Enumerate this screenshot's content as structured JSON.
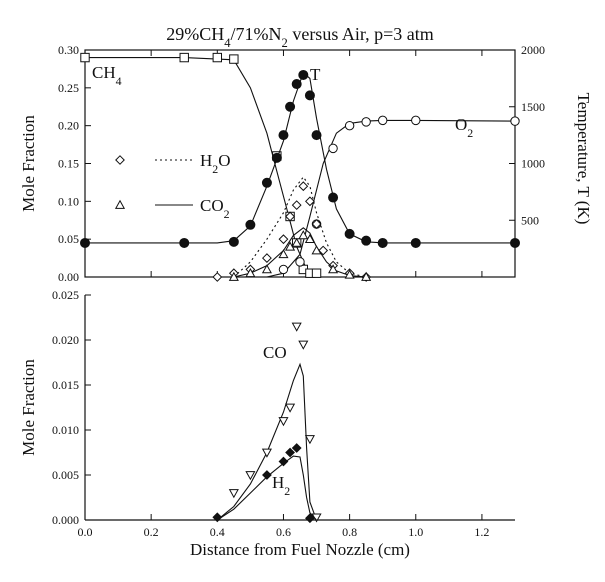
{
  "figure": {
    "title": "29%CH4/71%N2 versus Air, p=3 atm",
    "title_parts": [
      "29%CH",
      "4",
      "/71%N",
      "2",
      " versus Air, p=3 atm"
    ],
    "xlabel": "Distance from Fuel Nozzle (cm)"
  },
  "chart_data": [
    {
      "type": "line",
      "panel": "top",
      "xlim": [
        0,
        1.3
      ],
      "ylim": [
        0,
        0.3
      ],
      "ylabel": "Mole Fraction",
      "y2lim": [
        0,
        2000
      ],
      "y2label": "Temperature, T (K)",
      "x_ticks": [
        0.0,
        0.2,
        0.4,
        0.6,
        0.8,
        1.0,
        1.2
      ],
      "y_ticks": [
        "0.00",
        "0.05",
        "0.10",
        "0.15",
        "0.20",
        "0.25",
        "0.30"
      ],
      "y2_ticks": [
        "500",
        "1000",
        "1500",
        "2000"
      ],
      "legend": [
        {
          "label": "H2O",
          "label_parts": [
            "H",
            "2",
            "O"
          ],
          "marker": "diamond",
          "line": "dotted"
        },
        {
          "label": "CO2",
          "label_parts": [
            "CO",
            "2",
            ""
          ],
          "marker": "triangle",
          "line": "solid"
        }
      ],
      "series": [
        {
          "name": "CH4",
          "name_parts": [
            "CH",
            "4"
          ],
          "axis": "left",
          "marker": "square",
          "x": [
            0.0,
            0.3,
            0.4,
            0.45,
            0.58,
            0.62,
            0.64,
            0.66,
            0.68,
            0.7
          ],
          "y": [
            0.29,
            0.29,
            0.29,
            0.288,
            0.16,
            0.08,
            0.045,
            0.01,
            0.005,
            0.005
          ],
          "curve_x": [
            0.0,
            0.3,
            0.45,
            0.5,
            0.55,
            0.58,
            0.61,
            0.64,
            0.67,
            0.7
          ],
          "curve_y": [
            0.29,
            0.29,
            0.287,
            0.25,
            0.19,
            0.14,
            0.09,
            0.04,
            0.01,
            0.0
          ]
        },
        {
          "name": "T",
          "name_parts": [
            "T",
            ""
          ],
          "axis": "right",
          "marker": "filled-circle",
          "x": [
            0.0,
            0.3,
            0.45,
            0.5,
            0.55,
            0.58,
            0.6,
            0.62,
            0.64,
            0.66,
            0.68,
            0.7,
            0.75,
            0.8,
            0.85,
            0.9,
            1.0,
            1.3
          ],
          "y": [
            300,
            300,
            310,
            460,
            830,
            1050,
            1250,
            1500,
            1700,
            1780,
            1600,
            1250,
            700,
            380,
            320,
            300,
            300,
            300
          ],
          "curve_x": [
            0.0,
            0.4,
            0.45,
            0.5,
            0.55,
            0.6,
            0.63,
            0.66,
            0.68,
            0.7,
            0.73,
            0.76,
            0.8,
            0.85,
            0.9,
            1.3
          ],
          "curve_y": [
            300,
            300,
            320,
            450,
            800,
            1200,
            1550,
            1800,
            1750,
            1400,
            950,
            600,
            380,
            310,
            300,
            300
          ]
        },
        {
          "name": "O2",
          "name_parts": [
            "O",
            "2"
          ],
          "axis": "left",
          "marker": "open-circle",
          "x": [
            0.6,
            0.65,
            0.7,
            0.75,
            0.8,
            0.85,
            0.9,
            1.0,
            1.3
          ],
          "y": [
            0.01,
            0.02,
            0.07,
            0.17,
            0.2,
            0.205,
            0.207,
            0.207,
            0.206
          ],
          "curve_x": [
            0.55,
            0.6,
            0.65,
            0.68,
            0.72,
            0.76,
            0.8,
            0.85,
            0.9,
            1.0,
            1.3
          ],
          "curve_y": [
            0.0,
            0.005,
            0.03,
            0.08,
            0.15,
            0.19,
            0.203,
            0.206,
            0.207,
            0.207,
            0.206
          ]
        },
        {
          "name": "H2O",
          "axis": "left",
          "marker": "diamond",
          "x": [
            0.4,
            0.45,
            0.5,
            0.55,
            0.6,
            0.62,
            0.64,
            0.66,
            0.68,
            0.7,
            0.72,
            0.75,
            0.8,
            0.85
          ],
          "y": [
            0.0,
            0.005,
            0.01,
            0.025,
            0.05,
            0.08,
            0.095,
            0.12,
            0.1,
            0.07,
            0.035,
            0.015,
            0.005,
            0.0
          ],
          "curve_x": [
            0.45,
            0.5,
            0.55,
            0.6,
            0.63,
            0.66,
            0.68,
            0.7,
            0.73,
            0.76,
            0.8,
            0.85
          ],
          "curve_y": [
            0.0,
            0.02,
            0.05,
            0.085,
            0.115,
            0.132,
            0.12,
            0.085,
            0.045,
            0.02,
            0.005,
            0.0
          ]
        },
        {
          "name": "CO2",
          "axis": "left",
          "marker": "triangle",
          "x": [
            0.45,
            0.5,
            0.55,
            0.6,
            0.62,
            0.64,
            0.66,
            0.68,
            0.7,
            0.75,
            0.8,
            0.85
          ],
          "y": [
            0.0,
            0.005,
            0.01,
            0.03,
            0.04,
            0.045,
            0.055,
            0.05,
            0.035,
            0.01,
            0.003,
            0.0
          ],
          "curve_x": [
            0.45,
            0.5,
            0.55,
            0.6,
            0.63,
            0.66,
            0.68,
            0.7,
            0.73,
            0.76,
            0.8,
            0.85
          ],
          "curve_y": [
            0.0,
            0.005,
            0.015,
            0.035,
            0.055,
            0.065,
            0.058,
            0.04,
            0.02,
            0.008,
            0.002,
            0.0
          ]
        }
      ]
    },
    {
      "type": "line",
      "panel": "bottom",
      "xlim": [
        0,
        1.3
      ],
      "ylim": [
        0,
        0.025
      ],
      "ylabel": "Mole Fraction",
      "x_ticks": [
        "0.0",
        "0.2",
        "0.4",
        "0.6",
        "0.8",
        "1.0",
        "1.2"
      ],
      "y_ticks": [
        "0.000",
        "0.005",
        "0.010",
        "0.015",
        "0.020",
        "0.025"
      ],
      "series": [
        {
          "name": "CO",
          "name_parts": [
            "CO",
            ""
          ],
          "marker": "inverted-triangle",
          "x": [
            0.45,
            0.5,
            0.55,
            0.6,
            0.62,
            0.64,
            0.66,
            0.68,
            0.7
          ],
          "y": [
            0.003,
            0.005,
            0.0075,
            0.011,
            0.0125,
            0.0215,
            0.0195,
            0.009,
            0.0003
          ],
          "curve_x": [
            0.4,
            0.45,
            0.5,
            0.55,
            0.6,
            0.63,
            0.65,
            0.66,
            0.67,
            0.68,
            0.7
          ],
          "curve_y": [
            0.0,
            0.0015,
            0.004,
            0.0075,
            0.012,
            0.0155,
            0.0173,
            0.016,
            0.008,
            0.002,
            0.0
          ]
        },
        {
          "name": "H2",
          "name_parts": [
            "H",
            "2"
          ],
          "marker": "filled-diamond",
          "x": [
            0.4,
            0.55,
            0.6,
            0.62,
            0.64,
            0.68
          ],
          "y": [
            0.0003,
            0.005,
            0.0065,
            0.0075,
            0.008,
            0.0002
          ],
          "curve_x": [
            0.4,
            0.45,
            0.5,
            0.55,
            0.6,
            0.63,
            0.65,
            0.66,
            0.67,
            0.68,
            0.7
          ],
          "curve_y": [
            0.0,
            0.0012,
            0.003,
            0.0048,
            0.0063,
            0.0071,
            0.007,
            0.005,
            0.0025,
            0.0008,
            0.0
          ]
        }
      ]
    }
  ]
}
